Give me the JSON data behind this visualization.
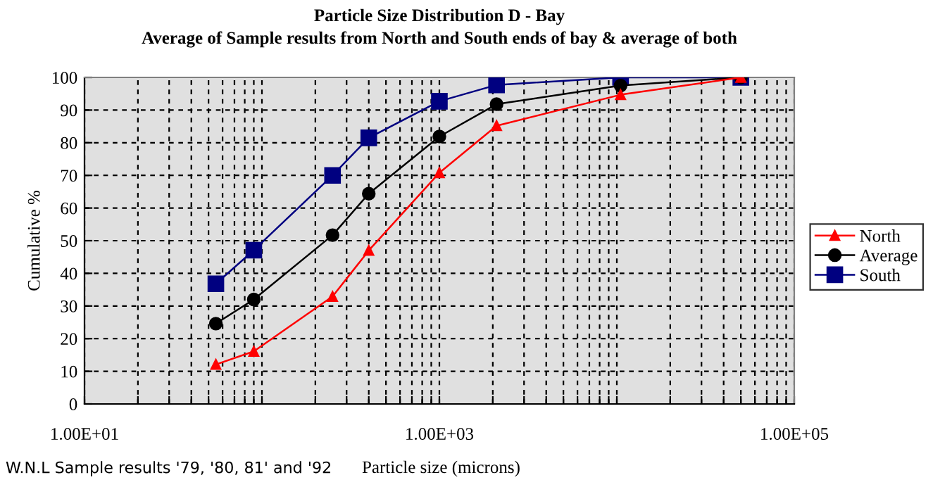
{
  "chart_data": {
    "type": "line",
    "title": "Particle Size Distribution D - Bay",
    "subtitle": "Average of Sample results from North and South ends of bay & average of both",
    "xlabel": "Particle size (microns)",
    "ylabel": "Cumulative %",
    "annotations": [
      "W.N.L Sample results '79, '80, 81' and '92"
    ],
    "x": [
      55,
      90,
      250,
      400,
      1000,
      2100,
      10500,
      50000
    ],
    "series": [
      {
        "name": "North",
        "color": "#ff0000",
        "marker": "triangle",
        "values": [
          12.1,
          16.1,
          32.9,
          47,
          70.8,
          85.2,
          94.7,
          100
        ]
      },
      {
        "name": "Average",
        "color": "#000000",
        "marker": "circle",
        "values": [
          24.6,
          32,
          51.7,
          64.4,
          81.9,
          91.8,
          97.5,
          100
        ]
      },
      {
        "name": "South",
        "color": "#000080",
        "marker": "square",
        "values": [
          36.8,
          47.1,
          70,
          81.5,
          92.7,
          97.7,
          100,
          100
        ]
      }
    ],
    "log": "x",
    "xlim": [
      10,
      100000
    ],
    "xticks": [
      {
        "value": 10,
        "label": "1.00E+01"
      },
      {
        "value": 20,
        "label": null
      },
      {
        "value": 30,
        "label": null
      },
      {
        "value": 40,
        "label": null
      },
      {
        "value": 50,
        "label": null
      },
      {
        "value": 60,
        "label": null
      },
      {
        "value": 70,
        "label": null
      },
      {
        "value": 80,
        "label": null
      },
      {
        "value": 90,
        "label": null
      },
      {
        "value": 100,
        "label": null
      },
      {
        "value": 200,
        "label": null
      },
      {
        "value": 300,
        "label": null
      },
      {
        "value": 400,
        "label": null
      },
      {
        "value": 500,
        "label": null
      },
      {
        "value": 600,
        "label": null
      },
      {
        "value": 700,
        "label": null
      },
      {
        "value": 800,
        "label": null
      },
      {
        "value": 900,
        "label": null
      },
      {
        "value": 1000,
        "label": "1.00E+03"
      },
      {
        "value": 2000,
        "label": null
      },
      {
        "value": 3000,
        "label": null
      },
      {
        "value": 4000,
        "label": null
      },
      {
        "value": 5000,
        "label": null
      },
      {
        "value": 6000,
        "label": null
      },
      {
        "value": 7000,
        "label": null
      },
      {
        "value": 8000,
        "label": null
      },
      {
        "value": 9000,
        "label": null
      },
      {
        "value": 10000,
        "label": null
      },
      {
        "value": 20000,
        "label": null
      },
      {
        "value": 30000,
        "label": null
      },
      {
        "value": 40000,
        "label": null
      },
      {
        "value": 50000,
        "label": null
      },
      {
        "value": 60000,
        "label": null
      },
      {
        "value": 70000,
        "label": null
      },
      {
        "value": 80000,
        "label": null
      },
      {
        "value": 90000,
        "label": null
      },
      {
        "value": 100000,
        "label": "1.00E+05"
      }
    ],
    "ylim": [
      0,
      100
    ],
    "yticks": [
      0,
      10,
      20,
      30,
      40,
      50,
      60,
      70,
      80,
      90,
      100
    ],
    "grid": true,
    "legend": "right",
    "line_style": "solid"
  }
}
